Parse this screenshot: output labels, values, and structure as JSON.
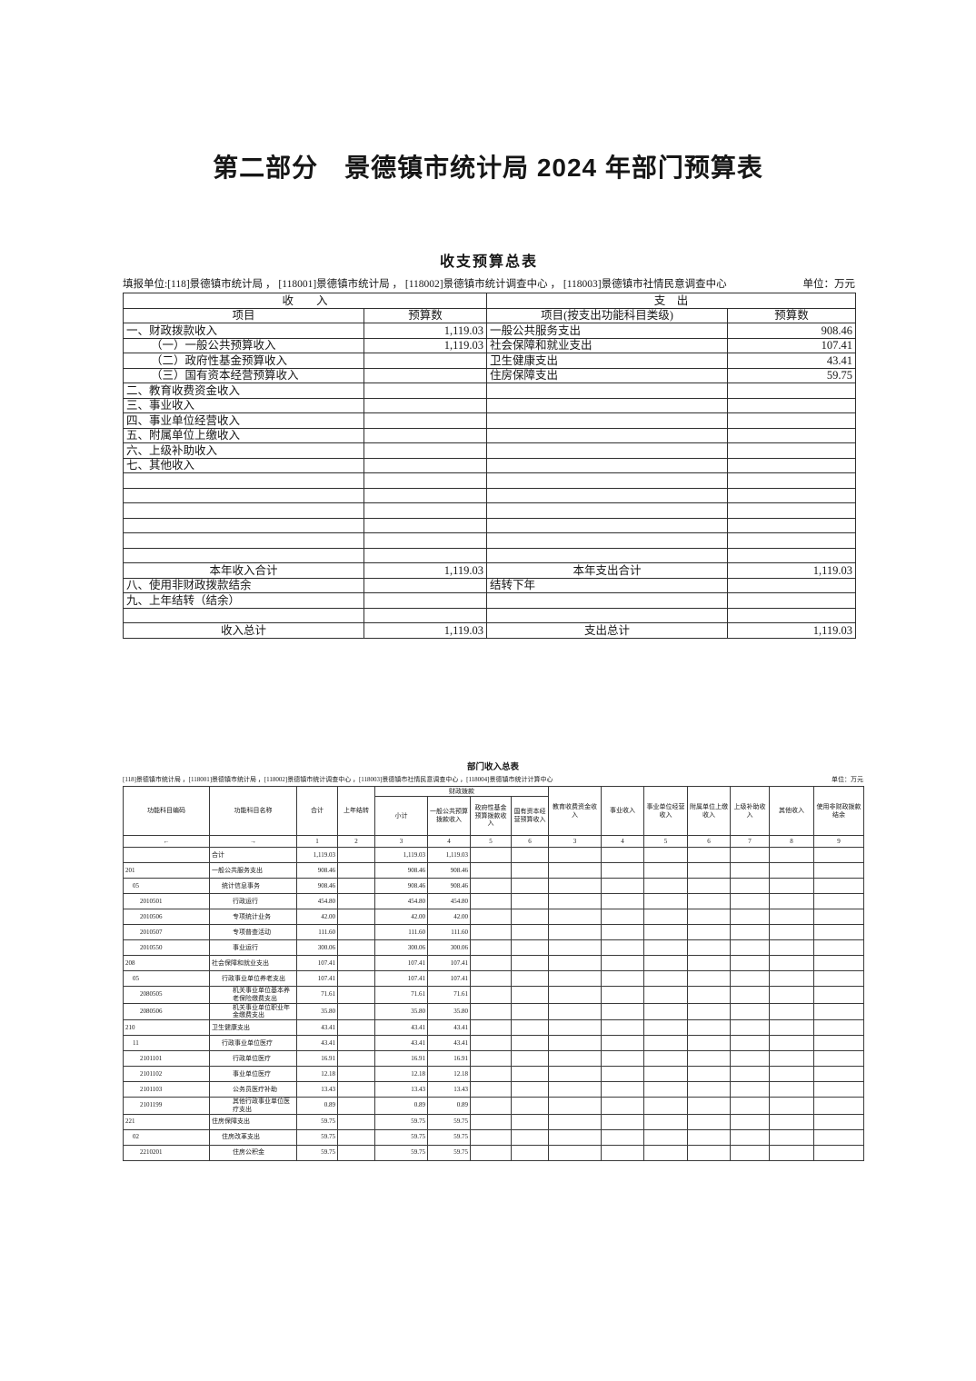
{
  "page": {
    "main_title": "第二部分　景德镇市统计局 2024 年部门预算表"
  },
  "summary_table": {
    "title": "收支预算总表",
    "reporting_unit": "填报单位:[118]景德镇市统计局 ， [118001]景德镇市统计局 ， [118002]景德镇市统计调查中心 ， [118003]景德镇市社情民意调查中心",
    "unit_label": "单位：万元",
    "header": {
      "income": "收　　入",
      "expense": "支　出",
      "item": "项目",
      "budget": "预算数",
      "item_expense": "项目(按支出功能科目类级)",
      "budget2": "预算数"
    },
    "rows": [
      {
        "i": "一、财政拨款收入",
        "iv": "1,119.03",
        "e": "一般公共服务支出",
        "ev": "908.46"
      },
      {
        "i": "（一）一般公共预算收入",
        "iv": "1,119.03",
        "e": "社会保障和就业支出",
        "ev": "107.41",
        "ind": true
      },
      {
        "i": "（二）政府性基金预算收入",
        "iv": "",
        "e": "卫生健康支出",
        "ev": "43.41",
        "ind": true
      },
      {
        "i": "（三）国有资本经营预算收入",
        "iv": "",
        "e": "住房保障支出",
        "ev": "59.75",
        "ind": true
      },
      {
        "i": "二、教育收费资金收入",
        "iv": "",
        "e": "",
        "ev": ""
      },
      {
        "i": "三、事业收入",
        "iv": "",
        "e": "",
        "ev": ""
      },
      {
        "i": "四、事业单位经营收入",
        "iv": "",
        "e": "",
        "ev": ""
      },
      {
        "i": "五、附属单位上缴收入",
        "iv": "",
        "e": "",
        "ev": ""
      },
      {
        "i": "六、上级补助收入",
        "iv": "",
        "e": "",
        "ev": ""
      },
      {
        "i": "七、其他收入",
        "iv": "",
        "e": "",
        "ev": ""
      },
      {
        "i": "",
        "iv": "",
        "e": "",
        "ev": ""
      },
      {
        "i": "",
        "iv": "",
        "e": "",
        "ev": ""
      },
      {
        "i": "",
        "iv": "",
        "e": "",
        "ev": ""
      },
      {
        "i": "",
        "iv": "",
        "e": "",
        "ev": ""
      },
      {
        "i": "",
        "iv": "",
        "e": "",
        "ev": ""
      },
      {
        "i": "",
        "iv": "",
        "e": "",
        "ev": ""
      },
      {
        "i": "本年收入合计",
        "iv": "1,119.03",
        "e": "本年支出合计",
        "ev": "1,119.03",
        "center": true
      },
      {
        "i": "八、使用非财政拨款结余",
        "iv": "",
        "e": "结转下年",
        "ev": ""
      },
      {
        "i": "九、上年结转（结余）",
        "iv": "",
        "e": "",
        "ev": ""
      },
      {
        "i": "",
        "iv": "",
        "e": "",
        "ev": ""
      },
      {
        "i": "收入总计",
        "iv": "1,119.03",
        "e": "支出总计",
        "ev": "1,119.03",
        "center": true
      }
    ]
  },
  "income_table": {
    "title": "部门收入总表",
    "reporting_unit": "[118]景德镇市统计局 ，[118001]景德镇市统计局 ，[118002]景德镇市统计调查中心 ，[118003]景德镇市社情民意调查中心 ，[118004]景德镇市统计计算中心",
    "unit_label": "单位：万元",
    "headers": {
      "code": "功能科目编码",
      "name": "功能科目名称",
      "total": "合计",
      "prev_year": "上年结转",
      "fk_group": "财政拨款",
      "fk_subtotal": "小计",
      "fk_general": "一般公共预算拨款收入",
      "fk_gov_fund": "政府性基金预算拨款收入",
      "fk_state_capital": "国有资本经营预算收入",
      "edu_fee": "教育收费资金收入",
      "business": "事业收入",
      "business_op": "事业单位经营收入",
      "affiliate": "附属单位上缴收入",
      "superior": "上级补助收入",
      "other": "其他收入",
      "non_fiscal": "使用非财政拨款结余"
    },
    "column_numbers": [
      "←",
      "→",
      "1",
      "2",
      "3",
      "4",
      "5",
      "6",
      "3",
      "4",
      "5",
      "6",
      "7",
      "8",
      "9"
    ],
    "rows": [
      {
        "code": "",
        "name": "合计",
        "level": 0,
        "values": [
          "1,119.03",
          "",
          "1,119.03",
          "1,119.03",
          "",
          "",
          "",
          "",
          "",
          "",
          "",
          "",
          ""
        ]
      },
      {
        "code": "201",
        "name": "一般公共服务支出",
        "level": 0,
        "values": [
          "908.46",
          "",
          "908.46",
          "908.46",
          "",
          "",
          "",
          "",
          "",
          "",
          "",
          "",
          ""
        ]
      },
      {
        "code": "05",
        "name": "统计信息事务",
        "level": 1,
        "values": [
          "908.46",
          "",
          "908.46",
          "908.46",
          "",
          "",
          "",
          "",
          "",
          "",
          "",
          "",
          ""
        ]
      },
      {
        "code": "2010501",
        "name": "行政运行",
        "level": 2,
        "values": [
          "454.80",
          "",
          "454.80",
          "454.80",
          "",
          "",
          "",
          "",
          "",
          "",
          "",
          "",
          ""
        ]
      },
      {
        "code": "2010506",
        "name": "专项统计业务",
        "level": 2,
        "values": [
          "42.00",
          "",
          "42.00",
          "42.00",
          "",
          "",
          "",
          "",
          "",
          "",
          "",
          "",
          ""
        ]
      },
      {
        "code": "2010507",
        "name": "专项普查活动",
        "level": 2,
        "values": [
          "111.60",
          "",
          "111.60",
          "111.60",
          "",
          "",
          "",
          "",
          "",
          "",
          "",
          "",
          ""
        ]
      },
      {
        "code": "2010550",
        "name": "事业运行",
        "level": 2,
        "values": [
          "300.06",
          "",
          "300.06",
          "300.06",
          "",
          "",
          "",
          "",
          "",
          "",
          "",
          "",
          ""
        ]
      },
      {
        "code": "208",
        "name": "社会保障和就业支出",
        "level": 0,
        "values": [
          "107.41",
          "",
          "107.41",
          "107.41",
          "",
          "",
          "",
          "",
          "",
          "",
          "",
          "",
          ""
        ]
      },
      {
        "code": "05",
        "name": "行政事业单位养老支出",
        "level": 1,
        "values": [
          "107.41",
          "",
          "107.41",
          "107.41",
          "",
          "",
          "",
          "",
          "",
          "",
          "",
          "",
          ""
        ]
      },
      {
        "code": "2080505",
        "name": "机关事业单位基本养老保险缴费支出",
        "level": 2,
        "values": [
          "71.61",
          "",
          "71.61",
          "71.61",
          "",
          "",
          "",
          "",
          "",
          "",
          "",
          "",
          ""
        ]
      },
      {
        "code": "2080506",
        "name": "机关事业单位职业年金缴费支出",
        "level": 2,
        "values": [
          "35.80",
          "",
          "35.80",
          "35.80",
          "",
          "",
          "",
          "",
          "",
          "",
          "",
          "",
          ""
        ]
      },
      {
        "code": "210",
        "name": "卫生健康支出",
        "level": 0,
        "values": [
          "43.41",
          "",
          "43.41",
          "43.41",
          "",
          "",
          "",
          "",
          "",
          "",
          "",
          "",
          ""
        ]
      },
      {
        "code": "11",
        "name": "行政事业单位医疗",
        "level": 1,
        "values": [
          "43.41",
          "",
          "43.41",
          "43.41",
          "",
          "",
          "",
          "",
          "",
          "",
          "",
          "",
          ""
        ]
      },
      {
        "code": "2101101",
        "name": "行政单位医疗",
        "level": 2,
        "values": [
          "16.91",
          "",
          "16.91",
          "16.91",
          "",
          "",
          "",
          "",
          "",
          "",
          "",
          "",
          ""
        ]
      },
      {
        "code": "2101102",
        "name": "事业单位医疗",
        "level": 2,
        "values": [
          "12.18",
          "",
          "12.18",
          "12.18",
          "",
          "",
          "",
          "",
          "",
          "",
          "",
          "",
          ""
        ]
      },
      {
        "code": "2101103",
        "name": "公务员医疗补助",
        "level": 2,
        "values": [
          "13.43",
          "",
          "13.43",
          "13.43",
          "",
          "",
          "",
          "",
          "",
          "",
          "",
          "",
          ""
        ]
      },
      {
        "code": "2101199",
        "name": "其他行政事业单位医疗支出",
        "level": 2,
        "values": [
          "0.89",
          "",
          "0.89",
          "0.89",
          "",
          "",
          "",
          "",
          "",
          "",
          "",
          "",
          ""
        ]
      },
      {
        "code": "221",
        "name": "住房保障支出",
        "level": 0,
        "values": [
          "59.75",
          "",
          "59.75",
          "59.75",
          "",
          "",
          "",
          "",
          "",
          "",
          "",
          "",
          ""
        ]
      },
      {
        "code": "02",
        "name": "住房改革支出",
        "level": 1,
        "values": [
          "59.75",
          "",
          "59.75",
          "59.75",
          "",
          "",
          "",
          "",
          "",
          "",
          "",
          "",
          ""
        ]
      },
      {
        "code": "2210201",
        "name": "住房公积金",
        "level": 2,
        "values": [
          "59.75",
          "",
          "59.75",
          "59.75",
          "",
          "",
          "",
          "",
          "",
          "",
          "",
          "",
          ""
        ]
      }
    ]
  }
}
